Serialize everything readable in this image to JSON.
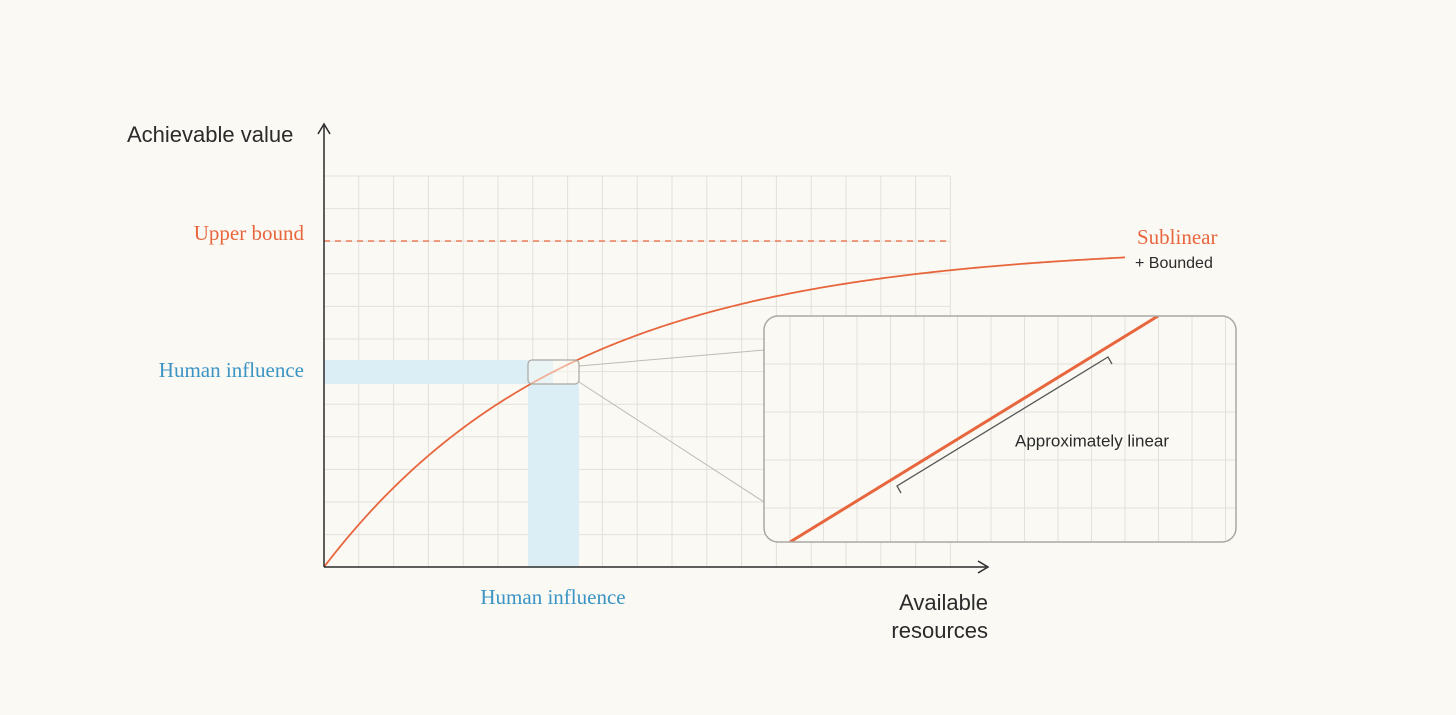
{
  "y_axis_label": "Achievable value",
  "x_axis_label": {
    "lines": [
      "Available",
      "resources"
    ]
  },
  "upper_bound_label": "Upper bound",
  "human_influence_y_label": "Human influence",
  "human_influence_x_label": "Human influence",
  "curve_label": {
    "title": "Sublinear",
    "subtitle": "+ Bounded"
  },
  "inset_label": "Approximately linear"
}
